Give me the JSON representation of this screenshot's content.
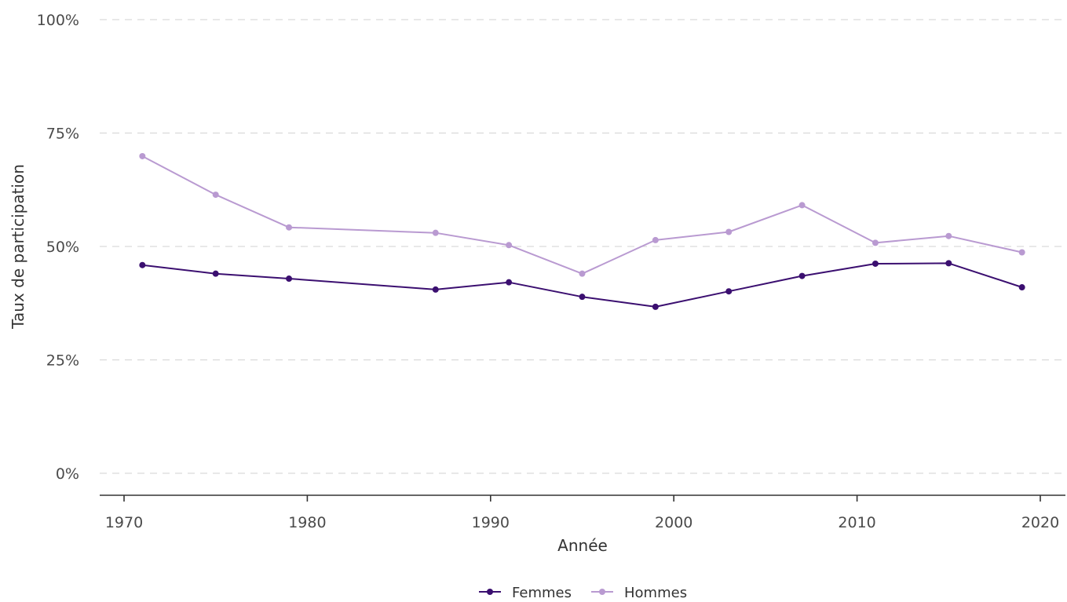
{
  "chart_data": {
    "type": "line",
    "title": "",
    "xlabel": "Année",
    "ylabel": "Taux de participation",
    "x": [
      1971,
      1975,
      1979,
      1987,
      1991,
      1995,
      1999,
      2003,
      2007,
      2011,
      2015,
      2019
    ],
    "xlim": [
      1969,
      2021
    ],
    "ylim": [
      0,
      1
    ],
    "x_ticks": [
      1970,
      1980,
      1990,
      2000,
      2010,
      2020
    ],
    "x_tick_labels": [
      "1970",
      "1980",
      "1990",
      "2000",
      "2010",
      "2020"
    ],
    "y_ticks": [
      0,
      0.25,
      0.5,
      0.75,
      1.0
    ],
    "y_tick_labels": [
      "0%",
      "25%",
      "50%",
      "75%",
      "100%"
    ],
    "grid": "horizontal-dashed",
    "legend_position": "bottom",
    "series": [
      {
        "name": "Femmes",
        "color": "#3b0f70",
        "values": [
          0.459,
          0.44,
          0.429,
          0.405,
          0.421,
          0.389,
          0.367,
          0.401,
          0.435,
          0.462,
          0.463,
          0.41
        ]
      },
      {
        "name": "Hommes",
        "color": "#b99ad1",
        "values": [
          0.699,
          0.614,
          0.542,
          0.53,
          0.503,
          0.44,
          0.514,
          0.532,
          0.591,
          0.508,
          0.523,
          0.487
        ]
      }
    ]
  }
}
